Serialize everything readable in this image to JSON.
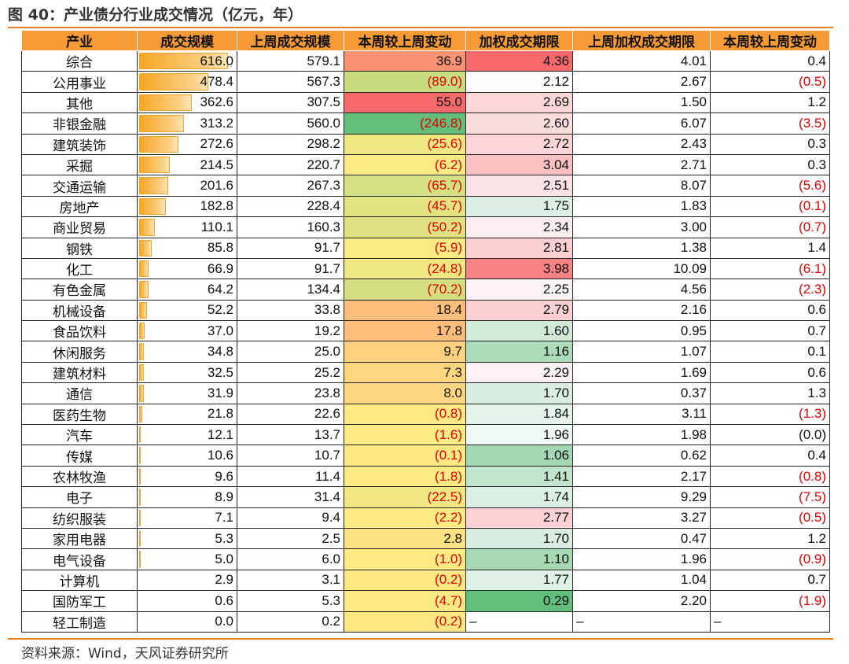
{
  "figure_title": "图 40：产业债分行业成交情况（亿元，年）",
  "source": "资料来源：Wind，天风证券研究所",
  "columns": [
    "产业",
    "成交规模",
    "上周成交规模",
    "本周较上周变动",
    "加权成交期限",
    "上周加权成交期限",
    "本周较上周变动"
  ],
  "rows": [
    [
      "综合",
      "616.0",
      "579.1",
      "36.9",
      "4.36",
      "4.01",
      "0.4"
    ],
    [
      "公用事业",
      "478.4",
      "567.3",
      "(89.0)",
      "2.12",
      "2.67",
      "(0.5)"
    ],
    [
      "其他",
      "362.6",
      "307.5",
      "55.0",
      "2.69",
      "1.50",
      "1.2"
    ],
    [
      "非银金融",
      "313.2",
      "560.0",
      "(246.8)",
      "2.60",
      "6.07",
      "(3.5)"
    ],
    [
      "建筑装饰",
      "272.6",
      "298.2",
      "(25.6)",
      "2.72",
      "2.43",
      "0.3"
    ],
    [
      "采掘",
      "214.5",
      "220.7",
      "(6.2)",
      "3.04",
      "2.71",
      "0.3"
    ],
    [
      "交通运输",
      "201.6",
      "267.3",
      "(65.7)",
      "2.51",
      "8.07",
      "(5.6)"
    ],
    [
      "房地产",
      "182.8",
      "228.4",
      "(45.7)",
      "1.75",
      "1.83",
      "(0.1)"
    ],
    [
      "商业贸易",
      "110.1",
      "160.3",
      "(50.2)",
      "2.34",
      "3.00",
      "(0.7)"
    ],
    [
      "钢铁",
      "85.8",
      "91.7",
      "(5.9)",
      "2.81",
      "1.38",
      "1.4"
    ],
    [
      "化工",
      "66.9",
      "91.7",
      "(24.8)",
      "3.98",
      "10.09",
      "(6.1)"
    ],
    [
      "有色金属",
      "64.2",
      "134.4",
      "(70.2)",
      "2.25",
      "4.56",
      "(2.3)"
    ],
    [
      "机械设备",
      "52.2",
      "33.8",
      "18.4",
      "2.79",
      "2.16",
      "0.6"
    ],
    [
      "食品饮料",
      "37.0",
      "19.2",
      "17.8",
      "1.60",
      "0.95",
      "0.7"
    ],
    [
      "休闲服务",
      "34.8",
      "25.0",
      "9.7",
      "1.16",
      "1.07",
      "0.1"
    ],
    [
      "建筑材料",
      "32.5",
      "25.2",
      "7.3",
      "2.29",
      "1.69",
      "0.6"
    ],
    [
      "通信",
      "31.9",
      "23.8",
      "8.0",
      "1.70",
      "0.37",
      "1.3"
    ],
    [
      "医药生物",
      "21.8",
      "22.6",
      "(0.8)",
      "1.84",
      "3.11",
      "(1.3)"
    ],
    [
      "汽车",
      "12.1",
      "13.7",
      "(1.6)",
      "1.96",
      "1.98",
      "(0.0)"
    ],
    [
      "传媒",
      "10.6",
      "10.7",
      "(0.1)",
      "1.06",
      "0.62",
      "0.4"
    ],
    [
      "农林牧渔",
      "9.6",
      "11.4",
      "(1.8)",
      "1.41",
      "2.17",
      "(0.8)"
    ],
    [
      "电子",
      "8.9",
      "31.4",
      "(22.5)",
      "1.74",
      "9.29",
      "(7.5)"
    ],
    [
      "纺织服装",
      "7.1",
      "9.4",
      "(2.2)",
      "2.77",
      "3.27",
      "(0.5)"
    ],
    [
      "家用电器",
      "5.3",
      "2.5",
      "2.8",
      "1.70",
      "0.47",
      "1.2"
    ],
    [
      "电气设备",
      "5.0",
      "6.0",
      "(1.0)",
      "1.10",
      "1.96",
      "(0.9)"
    ],
    [
      "计算机",
      "2.9",
      "3.1",
      "(0.2)",
      "1.77",
      "1.04",
      "0.7"
    ],
    [
      "国防军工",
      "0.6",
      "5.3",
      "(4.7)",
      "0.29",
      "2.20",
      "(1.9)"
    ],
    [
      "轻工制造",
      "0.0",
      "0.2",
      "(0.2)",
      "–",
      "–",
      "–"
    ]
  ],
  "colors": {
    "header_bg": "#f59a35",
    "rule": "#e67e22",
    "negative_text": "#e00000",
    "bar_fill": "#f6a623",
    "scale_red": "#f8696b",
    "scale_yellow": "#ffeb84",
    "scale_green": "#63be7b",
    "scale_white": "#fcfcff"
  }
}
